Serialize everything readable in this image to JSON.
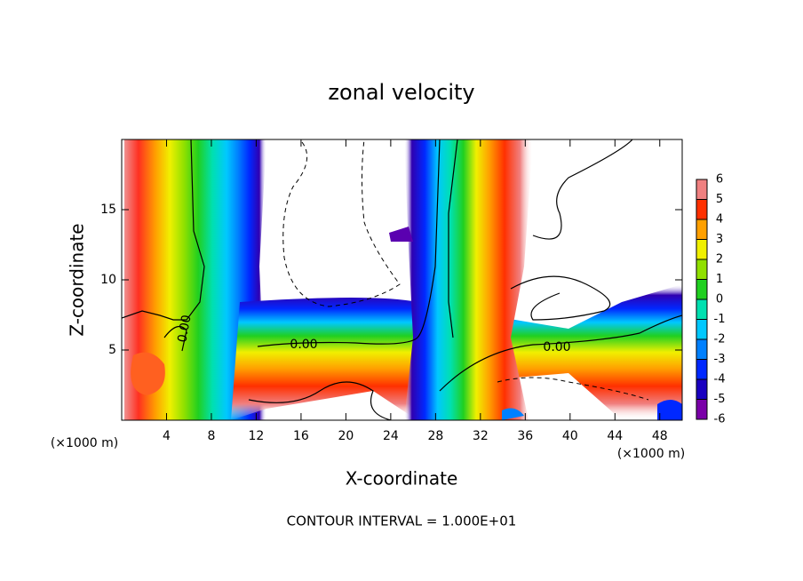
{
  "chart_data": {
    "type": "contour",
    "title": "zonal velocity",
    "x_label": "X-coordinate",
    "y_label": "Z-coordinate",
    "x_unit": "(×1000 m)",
    "x_unit_right": "(×1000 m)",
    "footer": "CONTOUR INTERVAL = 1.000E+01",
    "contour_labels": [
      "0.00",
      "0.00",
      "0.00"
    ],
    "xlim": [
      0,
      50
    ],
    "xticks": [
      4,
      8,
      12,
      16,
      20,
      24,
      28,
      32,
      36,
      40,
      44,
      48
    ],
    "ylim": [
      0,
      20
    ],
    "yticks": [
      5,
      10,
      15
    ],
    "colorbar": {
      "levels": [
        -6,
        -5,
        -4,
        -3,
        -2,
        -1,
        0,
        1,
        2,
        3,
        4,
        5,
        6
      ],
      "colors": [
        "#7a00a8",
        "#1a00c0",
        "#0028ff",
        "#0080ff",
        "#00c8ff",
        "#00e0b0",
        "#20d020",
        "#90e000",
        "#f0f000",
        "#ffa000",
        "#ff3000",
        "#f08080"
      ]
    }
  }
}
